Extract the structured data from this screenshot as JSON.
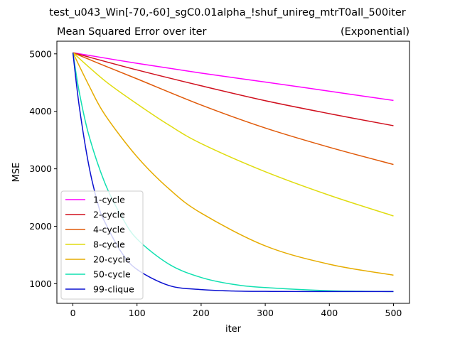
{
  "figure_title": "test_u043_Win[-70,-60]_sgC0.01alpha_!shuf_unireg_mtrT0all_500iter",
  "chart_data": {
    "type": "line",
    "title": "Mean Squared Error over iter",
    "subtitle": "(Exponential)",
    "xlabel": "iter",
    "ylabel": "MSE",
    "xlim": [
      -25,
      525
    ],
    "ylim": [
      660,
      5220
    ],
    "xticks": [
      0,
      100,
      200,
      300,
      400,
      500
    ],
    "yticks": [
      1000,
      2000,
      3000,
      4000,
      5000
    ],
    "grid": false,
    "legend_position": "lower-left",
    "series": [
      {
        "name": "1-cycle",
        "color": "#ff00ff",
        "x": [
          0,
          100,
          200,
          300,
          400,
          500
        ],
        "values": [
          5020,
          4835,
          4665,
          4510,
          4350,
          4190
        ]
      },
      {
        "name": "2-cycle",
        "color": "#d0101e",
        "x": [
          0,
          100,
          200,
          300,
          400,
          500
        ],
        "values": [
          5020,
          4720,
          4445,
          4185,
          3960,
          3750
        ]
      },
      {
        "name": "4-cycle",
        "color": "#e05a0a",
        "x": [
          0,
          50,
          100,
          200,
          300,
          400,
          500
        ],
        "values": [
          5020,
          4790,
          4565,
          4110,
          3710,
          3375,
          3075
        ]
      },
      {
        "name": "8-cycle",
        "color": "#e0dc10",
        "x": [
          0,
          50,
          100,
          150,
          200,
          300,
          400,
          500
        ],
        "values": [
          5020,
          4530,
          4130,
          3760,
          3440,
          2950,
          2540,
          2180
        ]
      },
      {
        "name": "20-cycle",
        "color": "#e6ac00",
        "x": [
          0,
          25,
          50,
          100,
          150,
          200,
          300,
          400,
          500
        ],
        "values": [
          5020,
          4450,
          3940,
          3210,
          2650,
          2230,
          1660,
          1340,
          1150
        ]
      },
      {
        "name": "50-cycle",
        "color": "#10e0b0",
        "x": [
          0,
          10,
          25,
          50,
          75,
          100,
          150,
          200,
          250,
          300,
          400,
          500
        ],
        "values": [
          5020,
          4330,
          3580,
          2750,
          2190,
          1780,
          1340,
          1110,
          990,
          935,
          880,
          865
        ]
      },
      {
        "name": "99-clique",
        "color": "#0a10d0",
        "x": [
          0,
          10,
          25,
          40,
          50,
          75,
          100,
          150,
          200,
          250,
          300,
          400,
          500
        ],
        "values": [
          5020,
          4080,
          3050,
          2350,
          2070,
          1560,
          1250,
          970,
          900,
          875,
          868,
          865,
          865
        ]
      }
    ]
  }
}
